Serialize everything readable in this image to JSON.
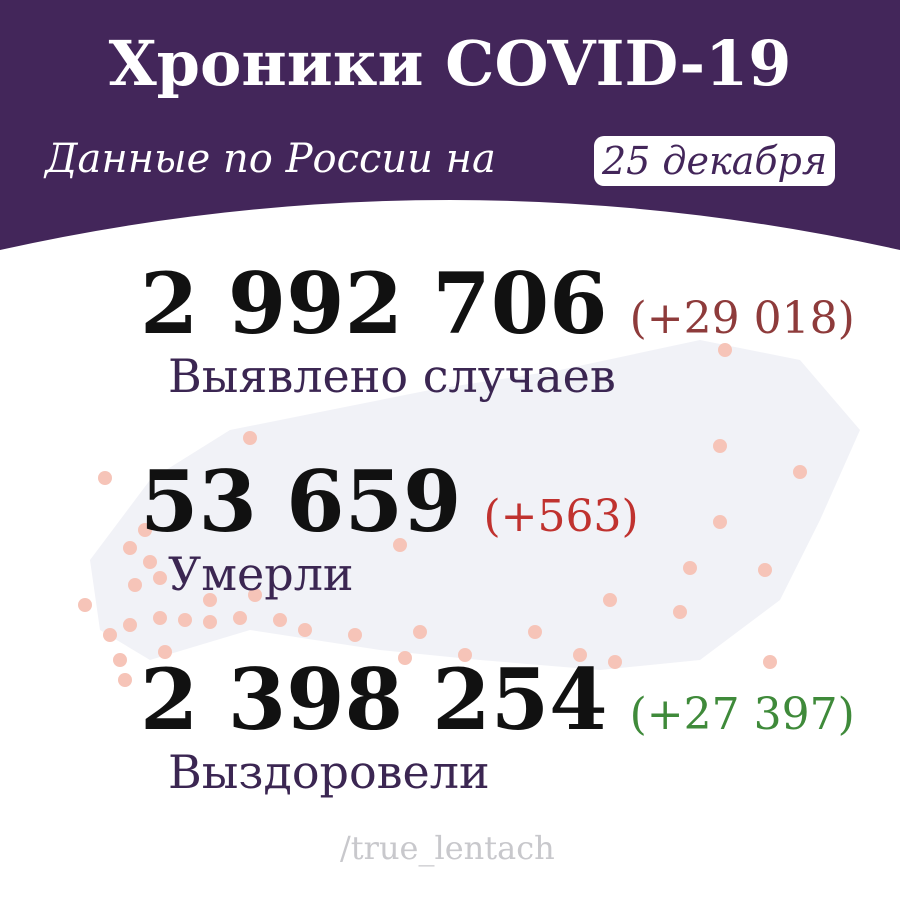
{
  "header": {
    "title": "Хроники COVID-19",
    "subtitle": "Данные по России на",
    "date": "25 декабря"
  },
  "stats": [
    {
      "value": "2 992 706",
      "delta": "(+29 018)",
      "label": "Выявлено случаев",
      "delta_color": "#8e3b3b"
    },
    {
      "value": "53 659",
      "delta": "(+563)",
      "label": "Умерли",
      "delta_color": "#c0322f"
    },
    {
      "value": "2 398 254",
      "delta": "(+27 397)",
      "label": "Выздоровели",
      "delta_color": "#3f8a3a"
    }
  ],
  "footer": {
    "credit": "/true_lentach"
  },
  "colors": {
    "header_bg": "#43265a",
    "map_bg": "#f1f2f7",
    "dot": "#f6c4b8"
  },
  "icons": {
    "background": "russia-map-with-case-dots"
  }
}
